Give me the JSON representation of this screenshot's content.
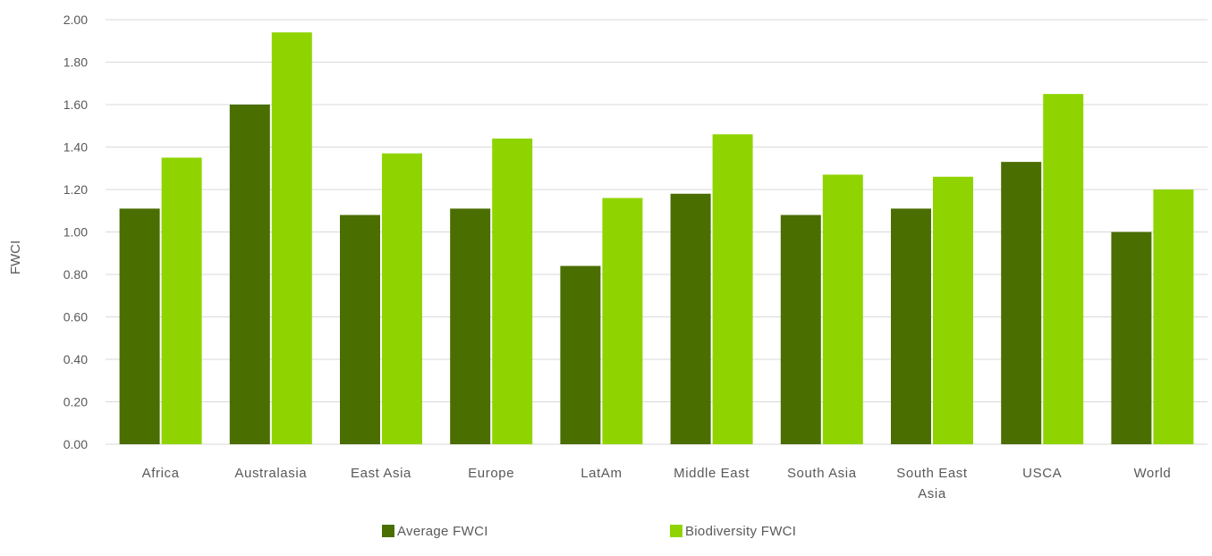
{
  "chart_data": {
    "type": "bar",
    "categories": [
      "Africa",
      "Australasia",
      "East Asia",
      "Europe",
      "LatAm",
      "Middle East",
      "South Asia",
      "South East Asia",
      "USCA",
      "World"
    ],
    "category_labels": [
      [
        "Africa"
      ],
      [
        "Australasia"
      ],
      [
        "East Asia"
      ],
      [
        "Europe"
      ],
      [
        "LatAm"
      ],
      [
        "Middle East"
      ],
      [
        "South Asia"
      ],
      [
        "South East",
        "Asia"
      ],
      [
        "USCA"
      ],
      [
        "World"
      ]
    ],
    "series": [
      {
        "name": "Average FWCI",
        "color": "#4a6e00",
        "values": [
          1.11,
          1.6,
          1.08,
          1.11,
          0.84,
          1.18,
          1.08,
          1.11,
          1.33,
          1.0
        ]
      },
      {
        "name": "Biodiversity FWCI",
        "color": "#8fd400",
        "values": [
          1.35,
          1.94,
          1.37,
          1.44,
          1.16,
          1.46,
          1.27,
          1.26,
          1.65,
          1.2
        ]
      }
    ],
    "ylabel": "FWCI",
    "xlabel": "",
    "ylim": [
      0,
      2.0
    ],
    "yticks": [
      "0.00",
      "0.20",
      "0.40",
      "0.60",
      "0.80",
      "1.00",
      "1.20",
      "1.40",
      "1.60",
      "1.80",
      "2.00"
    ],
    "grid": true,
    "gridline_color": "#d9d9d9",
    "legend_position": "bottom"
  }
}
